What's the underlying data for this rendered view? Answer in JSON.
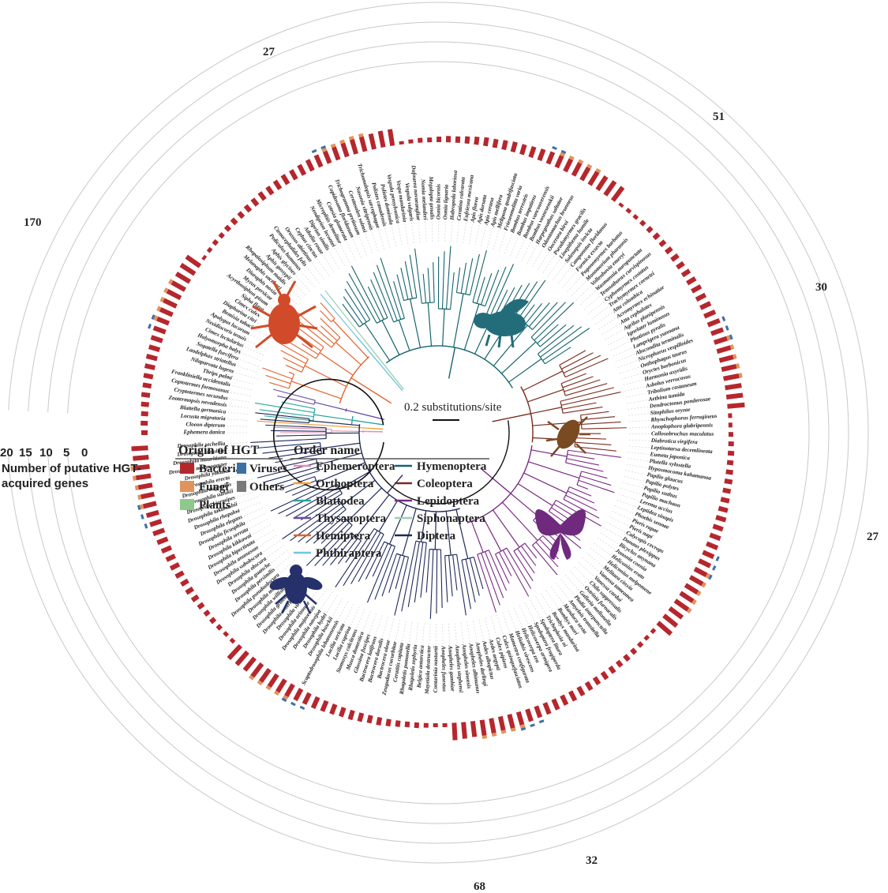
{
  "scale_bar_label": "0.2 substitutions/site",
  "axis": {
    "title_line1": "Number of putative HGT-",
    "title_line2": "acquired genes",
    "ticks": [
      "20",
      "15",
      "10",
      "5",
      "0"
    ]
  },
  "legend_hgt": {
    "title": "Origin of HGT",
    "items": [
      {
        "label": "Bacteria",
        "color": "#b5272d"
      },
      {
        "label": "Viruses",
        "color": "#3a6fa6"
      },
      {
        "label": "Fungi",
        "color": "#e2935c"
      },
      {
        "label": "Others",
        "color": "#7a7a7a"
      },
      {
        "label": "Plants",
        "color": "#8cc98a"
      }
    ]
  },
  "legend_order": {
    "title": "Order name",
    "items": [
      {
        "label": "Ephemeroptera",
        "color": "#e08fb6"
      },
      {
        "label": "Hymenoptera",
        "color": "#13646c"
      },
      {
        "label": "Orthoptera",
        "color": "#f0a23b"
      },
      {
        "label": "Coleoptera",
        "color": "#7a2a1e"
      },
      {
        "label": "Blattodea",
        "color": "#2aa79b"
      },
      {
        "label": "Lepidoptera",
        "color": "#7a2a84"
      },
      {
        "label": "Thysanoptera",
        "color": "#6a4ea2"
      },
      {
        "label": "Siphonaptera",
        "color": "#9ecfb2"
      },
      {
        "label": "Hemiptera",
        "color": "#e3612b"
      },
      {
        "label": "Diptera",
        "color": "#1f2a5a"
      },
      {
        "label": "Phthiraptera",
        "color": "#6fc6e0"
      }
    ]
  },
  "break_labels": [
    "27",
    "170",
    "51",
    "30",
    "27",
    "32",
    "68"
  ],
  "taxa": [
    "Ephemera danica",
    "Cloeon dipterum",
    "Locusta migratoria",
    "Blattella germanica",
    "Zootermopsis nevadensis",
    "Cryptotermes secundus",
    "Coptotermes formosanus",
    "Frankliniella occidentalis",
    "Thrips palmi",
    "Nilaparvata lugens",
    "Laodelphax striatellus",
    "Sogatella furcifera",
    "Halyomorpha halys",
    "Cimex lectularius",
    "Nesidiocoris tenuis",
    "Apolygus lucorum",
    "Bemisia tabaci",
    "Diaphorina citri",
    "Cimex culex",
    "Sipha flava",
    "Acyrthosiphon pisum",
    "Myzus persicae",
    "Diuraphis noxia",
    "Melanaphis sacchari",
    "Rhopalosiphum maidis",
    "Aphis gossypii",
    "Aphis glycines",
    "Pediculus humanus",
    "Ctenocephalides felis",
    "Orussus abietinus",
    "Cephus cinctus",
    "Athalia rosae",
    "Diprion similis",
    "Neodiprion lecontei",
    "Microplitis demolitor",
    "Cotesia glomerata",
    "Copidosoma floridanum",
    "Trichogramma pretiosum",
    "Ceratosolen solmsi",
    "Nasonia vitripennis",
    "Trichomalopsis sarcophagae",
    "Polistes canadensis",
    "Polistes dominula",
    "Vespula pensylvanica",
    "Vespa mandarinia",
    "Vespula vulgaris",
    "Dufourea novaeangliae",
    "Nomia melanderi",
    "Megalopta genalis",
    "Osmia bicornis",
    "Osmia lignaria",
    "Habropoda laboriosa",
    "Ceratina calcarata",
    "Eufriesea mexicana",
    "Apis florea",
    "Apis dorsata",
    "Apis cerana",
    "Apis mellifera",
    "Melipona quadrifasciata",
    "Frieseomelitta varia",
    "Bombus terrestris",
    "Bombus impatiens",
    "Bombus vancouverensis",
    "Bombus vosnesenskii",
    "Harpegnathos saltator",
    "Odontomachus brunneus",
    "Ooceraea biroi",
    "Pseudomyrmex gracilis",
    "Linepithema humile",
    "Solenopsis invicta",
    "Camponotus floridanus",
    "Formica exsecta",
    "Pogonomyrmex barbatus",
    "Monomorium pharaonis",
    "Vollenhovia emeryi",
    "Wasmannia auropunctata",
    "Temnothorax curvispinosus",
    "Cyphomyrmex costatus",
    "Trachymyrmex cornetzi",
    "Atta colombica",
    "Acromyrmex echinatior",
    "Atta cephalotes",
    "Agrilus planipennis",
    "Ignelater luminosus",
    "Photinus pyralis",
    "Lamprigera yunnana",
    "Abscondita terminalis",
    "Nicrophorus vespilloides",
    "Onthophagus taurus",
    "Oryctes borbonicus",
    "Harmonia axyridis",
    "Asbolus verrucosus",
    "Tribolium castaneum",
    "Aethina tumida",
    "Dendroctonus ponderosae",
    "Sitophilus oryzae",
    "Rhynchophorus ferrugineus",
    "Anoplophora glabripennis",
    "Callosobruchus maculatus",
    "Diabrotica virgifera",
    "Leptinotarsa decemlineata",
    "Eumeta japonica",
    "Plutella xylostella",
    "Hyposmocoma kahamanoa",
    "Papilio glaucus",
    "Papilio polytes",
    "Papilio xuthus",
    "Papilio machaon",
    "Lerema accius",
    "Leptidea sinapis",
    "Phoebis sennae",
    "Pieris rapae",
    "Pieris napi",
    "Calycopis cecrops",
    "Danaus plexippus",
    "Bicyclus anynana",
    "Junonia coenia",
    "Heliconius erato",
    "Heliconius melpomene",
    "Melitaea cinxia",
    "Vanessa tameamea",
    "Vanessa cardui",
    "Chilo suppressalis",
    "Ostrinia furnacalis",
    "Galleria mellonella",
    "Plodia interpunctella",
    "Amyelois transitella",
    "Manduca sexta",
    "Bombyx mori",
    "Bombyx mandarina",
    "Trichoplusia ni",
    "Spodoptera litura",
    "Spodoptera frugiperda",
    "Helicoverpa armigera",
    "Helicoverpa zea",
    "Heliothis virescens",
    "Mamestra configurata",
    "Culex quinquefasciatus",
    "Culex pipiens",
    "Aedes aegypti",
    "Aedes albopictus",
    "Anopheles darlingi",
    "Anopheles albimanus",
    "Anopheles sinensis",
    "Anopheles stephensi",
    "Anopheles gambiae",
    "Anopheles funestus",
    "Contarinia nasturtii",
    "Mayetiola destructor",
    "Belgica antarctica",
    "Rhagoletis zephyria",
    "Rhagoletis pomonella",
    "Ceratitis capitata",
    "Zeugodacus cucurbitae",
    "Bactrocera oleae",
    "Bactrocera dorsalis",
    "Bactrocera latifrons",
    "Glossina fuscipes",
    "Musca domestica",
    "Stomoxys calcitrans",
    "Lucilia cuprina",
    "Lucilia sericata",
    "Scaptodrosophila lebanonensis",
    "Drosophila busckii",
    "Drosophila hydei",
    "Drosophila navojoa",
    "Drosophila mojavensis",
    "Drosophila arizonae",
    "Drosophila virilis",
    "Drosophila americana",
    "Drosophila grimshawi",
    "Drosophila willistoni",
    "Drosophila miranda",
    "Drosophila pseudoobscura",
    "Drosophila persimilis",
    "Drosophila guanche",
    "Drosophila obscura",
    "Drosophila subobscura",
    "Drosophila ananassae",
    "Drosophila bipectinata",
    "Drosophila kikkawai",
    "Drosophila serrata",
    "Drosophila ficusphila",
    "Drosophila elegans",
    "Drosophila rhopaloa",
    "Drosophila takahashii",
    "Drosophila biarmipes",
    "Drosophila suzukii",
    "Drosophila eugracilis",
    "Drosophila erecta",
    "Drosophila yakuba",
    "Drosophila melanogaster",
    "Drosophila mauritiana",
    "Drosophila simulans",
    "Drosophila sechellia"
  ]
}
